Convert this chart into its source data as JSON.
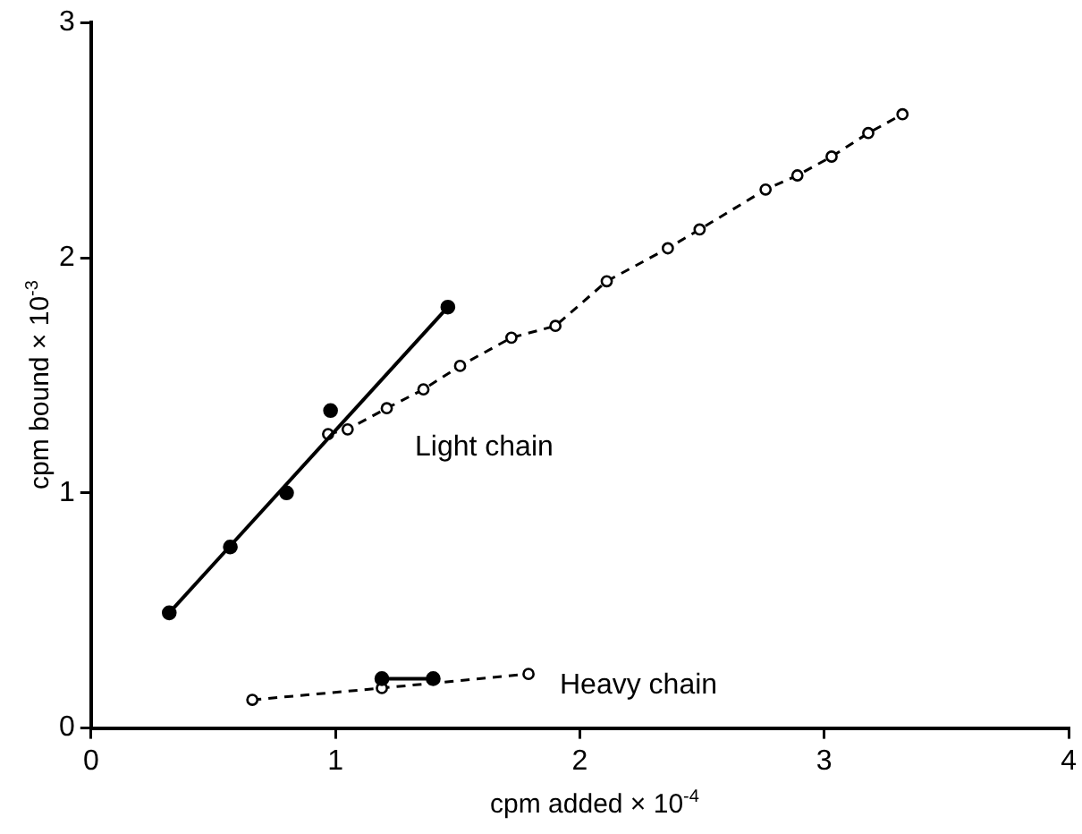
{
  "chart_data": {
    "type": "line",
    "xlabel": "cpm added × 10$^{-4}$",
    "ylabel": "cpm bound × 10$^{-3}$",
    "xlim": [
      0,
      4
    ],
    "xticks": [
      0,
      1,
      2,
      3,
      4
    ],
    "ylim": [
      0,
      3
    ],
    "yticks": [
      0,
      1,
      2,
      3
    ],
    "grid": false,
    "legend": false,
    "marker": "circle",
    "series": [
      {
        "type": "scatter",
        "color": "#000000",
        "line_style": "solid",
        "x": [
          0.32,
          0.57,
          0.8,
          0.98,
          1.46
        ],
        "values": [
          0.49,
          0.77,
          1.0,
          1.35,
          1.79
        ]
      },
      {
        "type": "line",
        "marker": "none",
        "color": "#000000",
        "line_style": "solid",
        "x": [
          0.32,
          1.46
        ],
        "values": [
          0.49,
          1.79
        ]
      },
      {
        "color": "#000000",
        "line_style": "dashed",
        "x": [
          0.97,
          1.05,
          1.21,
          1.36,
          1.51,
          1.72,
          1.9,
          2.11,
          2.36,
          2.49,
          2.76,
          2.89,
          3.03,
          3.18,
          3.32
        ],
        "values": [
          1.25,
          1.27,
          1.36,
          1.44,
          1.54,
          1.66,
          1.71,
          1.9,
          2.04,
          2.12,
          2.29,
          2.35,
          2.43,
          2.53,
          2.61
        ]
      },
      {
        "color": "#000000",
        "line_style": "solid",
        "x": [
          1.19,
          1.4
        ],
        "values": [
          0.21,
          0.21
        ]
      },
      {
        "color": "#000000",
        "line_style": "dashed",
        "x": [
          0.66,
          1.19,
          1.79
        ],
        "values": [
          0.12,
          0.17,
          0.23
        ]
      }
    ],
    "annotations": [
      "Light chain",
      "Heavy chain"
    ]
  }
}
